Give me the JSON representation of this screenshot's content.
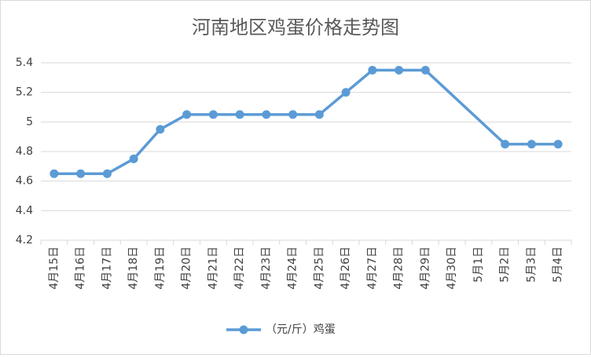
{
  "chart_data": {
    "type": "line",
    "title": "河南地区鸡蛋价格走势图",
    "categories": [
      "4月15日",
      "4月16日",
      "4月17日",
      "4月18日",
      "4月19日",
      "4月20日",
      "4月21日",
      "4月22日",
      "4月23日",
      "4月24日",
      "4月25日",
      "4月26日",
      "4月27日",
      "4月28日",
      "4月29日",
      "4月30日",
      "5月1日",
      "5月2日",
      "5月3日",
      "5月4日"
    ],
    "series": [
      {
        "name": "（元/斤）鸡蛋",
        "color": "#5b9bd5",
        "values": [
          4.65,
          4.65,
          4.65,
          4.75,
          4.95,
          5.05,
          5.05,
          5.05,
          5.05,
          5.05,
          5.05,
          5.2,
          5.35,
          5.35,
          5.35,
          null,
          null,
          4.85,
          4.85,
          4.85
        ]
      }
    ],
    "ylim": [
      4.2,
      5.4
    ],
    "yticks": [
      4.2,
      4.4,
      4.6,
      4.8,
      5,
      5.2,
      5.4
    ],
    "grid": true,
    "span_gaps": true,
    "legend": "bottom"
  }
}
